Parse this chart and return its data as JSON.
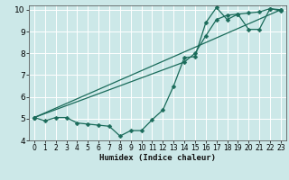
{
  "xlabel": "Humidex (Indice chaleur)",
  "ylabel": "",
  "xlim": [
    -0.5,
    23.5
  ],
  "ylim": [
    4,
    10.2
  ],
  "yticks": [
    4,
    5,
    6,
    7,
    8,
    9,
    10
  ],
  "xticks": [
    0,
    1,
    2,
    3,
    4,
    5,
    6,
    7,
    8,
    9,
    10,
    11,
    12,
    13,
    14,
    15,
    16,
    17,
    18,
    19,
    20,
    21,
    22,
    23
  ],
  "bg_color": "#cce8e8",
  "grid_color": "#ffffff",
  "line_color": "#1a6b5a",
  "line1_x": [
    0,
    1,
    2,
    3,
    4,
    5,
    6,
    7,
    8,
    9,
    10,
    11,
    12,
    13,
    14,
    15,
    16,
    17,
    18,
    19,
    20,
    21,
    22,
    23
  ],
  "line1_y": [
    5.05,
    4.9,
    5.05,
    5.05,
    4.8,
    4.75,
    4.7,
    4.65,
    4.2,
    4.45,
    4.45,
    4.95,
    5.4,
    6.5,
    7.8,
    7.85,
    9.4,
    10.1,
    9.55,
    9.8,
    9.1,
    9.1,
    10.05,
    9.95
  ],
  "line2_x": [
    0,
    23
  ],
  "line2_y": [
    5.05,
    10.0
  ],
  "line3_x": [
    0,
    14,
    15,
    16,
    17,
    18,
    19,
    20,
    21,
    22,
    23
  ],
  "line3_y": [
    5.05,
    7.6,
    8.0,
    8.8,
    9.55,
    9.75,
    9.8,
    9.85,
    9.9,
    10.05,
    10.0
  ]
}
